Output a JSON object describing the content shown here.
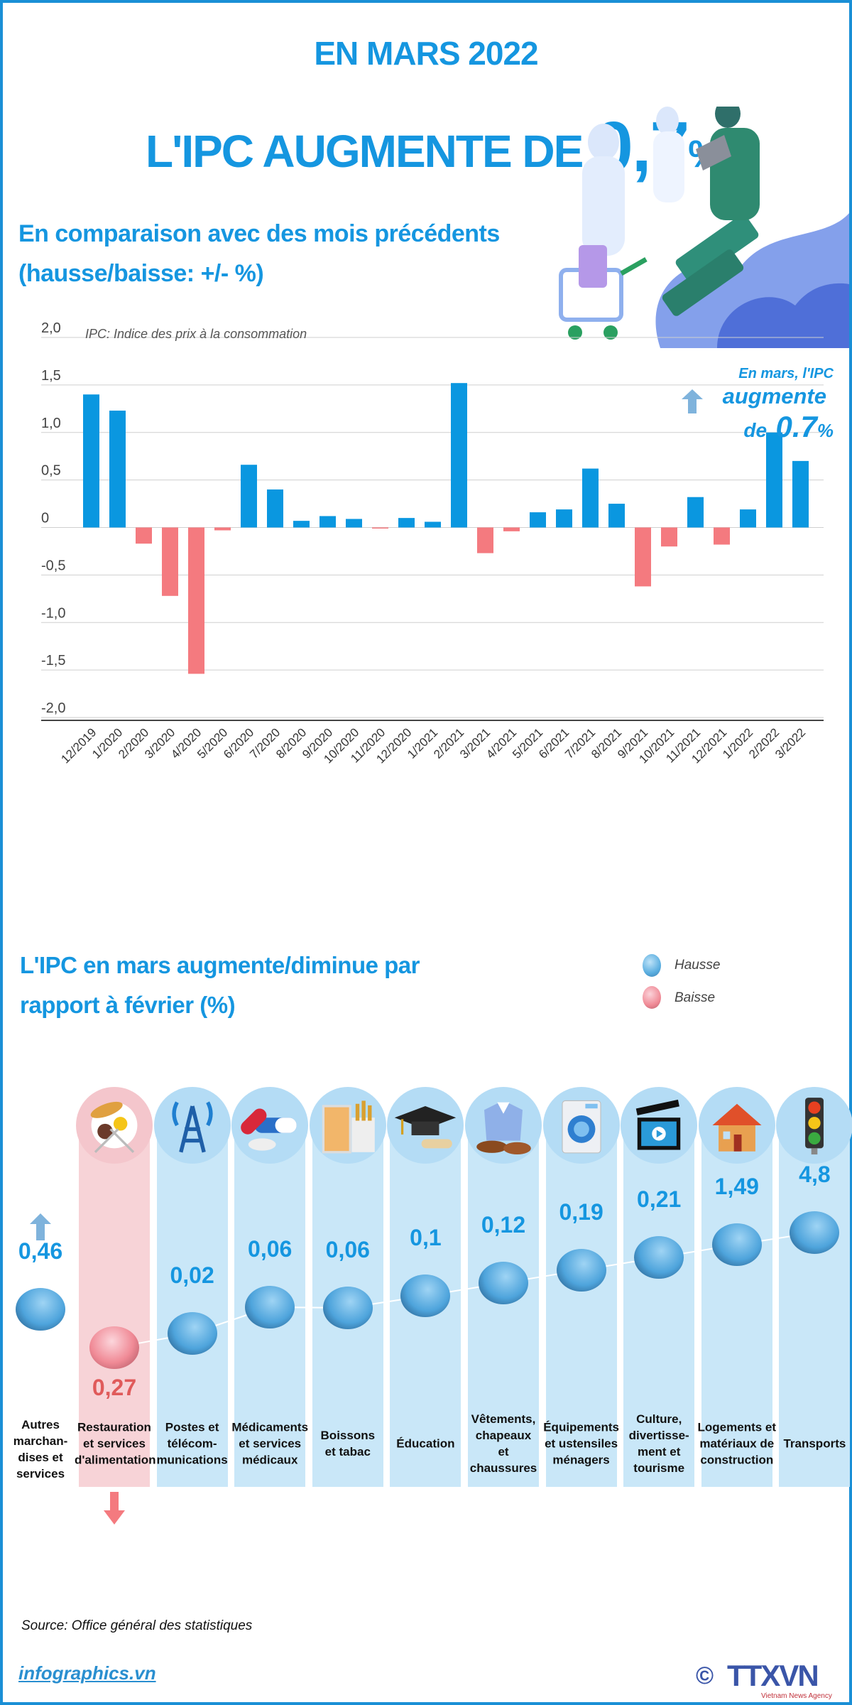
{
  "header": {
    "title_line1": "EN MARS 2022",
    "title_line2_prefix": "L'IPC AUGMENTE DE",
    "title_value": "0,7",
    "title_unit": "%"
  },
  "section1": {
    "title_line1": "En comparaison avec des mois précédents",
    "title_line2": "(hausse/baisse: +/- %)",
    "note": "IPC: Indice des prix à la consommation",
    "annotation_line1": "En mars, l'IPC",
    "annotation_line2": "augmente",
    "annotation_de": "de",
    "annotation_value": "0.7",
    "annotation_unit": "%"
  },
  "section2": {
    "title_line1": "L'IPC en mars augmente/diminue par",
    "title_line2": "rapport à février (%)",
    "legend": [
      {
        "label": "Hausse",
        "color": "#5aaee0"
      },
      {
        "label": "Baisse",
        "color": "#f08a96"
      }
    ]
  },
  "colors": {
    "accent": "#1596e0",
    "positive_bar": "#0a97e0",
    "negative_bar": "#f47a7f",
    "negative_text": "#e05a5a",
    "strip_blue": "#c9e7f8",
    "strip_pink": "#f7d3d7"
  },
  "chart_data": [
    {
      "type": "bar",
      "title": "",
      "ylim": [
        -2.0,
        2.0
      ],
      "yticks": [
        "2,0",
        "1,5",
        "1,0",
        "0,5",
        "0",
        "-0,5",
        "-1,0",
        "-1,5",
        "-2,0"
      ],
      "ytick_values": [
        2.0,
        1.5,
        1.0,
        0.5,
        0,
        -0.5,
        -1.0,
        -1.5,
        -2.0
      ],
      "grid": true,
      "categories": [
        "12/2019",
        "1/2020",
        "2/2020",
        "3/2020",
        "4/2020",
        "5/2020",
        "6/2020",
        "7/2020",
        "8/2020",
        "9/2020",
        "10/2020",
        "11/2020",
        "12/2020",
        "1/2021",
        "2/2021",
        "3/2021",
        "4/2021",
        "5/2021",
        "6/2021",
        "7/2021",
        "8/2021",
        "9/2021",
        "10/2021",
        "11/2021",
        "12/2021",
        "1/2022",
        "2/2022",
        "3/2022"
      ],
      "values": [
        1.4,
        1.23,
        -0.17,
        -0.72,
        -1.54,
        -0.03,
        0.66,
        0.4,
        0.07,
        0.12,
        0.09,
        -0.01,
        0.1,
        0.06,
        1.52,
        -0.27,
        -0.04,
        0.16,
        0.19,
        0.62,
        0.25,
        -0.62,
        -0.2,
        0.32,
        -0.18,
        0.19,
        1.0,
        0.7
      ]
    },
    {
      "type": "scatter",
      "title": "",
      "categories": [
        {
          "label": "Autres marchan- dises et services",
          "lines": [
            "Autres",
            "marchan-",
            "dises et",
            "services"
          ],
          "value": 0.46,
          "value_label": "0,46",
          "direction": "hausse",
          "icon": "none"
        },
        {
          "label": "Restauration et services d'alimentation",
          "lines": [
            "Restauration",
            "et services",
            "d'alimentation"
          ],
          "value": -0.27,
          "value_label": "0,27",
          "direction": "baisse",
          "icon": "food-plate-icon"
        },
        {
          "label": "Postes et télécom- munications",
          "lines": [
            "Postes et",
            "télécom-",
            "munications"
          ],
          "value": 0.02,
          "value_label": "0,02",
          "direction": "hausse",
          "icon": "antenna-tower-icon"
        },
        {
          "label": "Médicaments et services médicaux",
          "lines": [
            "Médicaments",
            "et services",
            "médicaux"
          ],
          "value": 0.06,
          "value_label": "0,06",
          "direction": "hausse",
          "icon": "pill-icon"
        },
        {
          "label": "Boissons et tabac",
          "lines": [
            "Boissons",
            "et tabac"
          ],
          "value": 0.06,
          "value_label": "0,06",
          "direction": "hausse",
          "icon": "drink-cigarettes-icon"
        },
        {
          "label": "Éducation",
          "lines": [
            "Éducation"
          ],
          "value": 0.1,
          "value_label": "0,1",
          "direction": "hausse",
          "icon": "graduation-cap-icon"
        },
        {
          "label": "Vêtements, chapeaux et chaussures",
          "lines": [
            "Vêtements,",
            "chapeaux",
            "et",
            "chaussures"
          ],
          "value": 0.12,
          "value_label": "0,12",
          "direction": "hausse",
          "icon": "shirt-shoes-icon"
        },
        {
          "label": "Équipements et ustensiles ménagers",
          "lines": [
            "Équipements",
            "et ustensiles",
            "ménagers"
          ],
          "value": 0.19,
          "value_label": "0,19",
          "direction": "hausse",
          "icon": "washing-machine-icon"
        },
        {
          "label": "Culture, divertisse- ment et tourisme",
          "lines": [
            "Culture,",
            "divertisse-",
            "ment et",
            "tourisme"
          ],
          "value": 0.21,
          "value_label": "0,21",
          "direction": "hausse",
          "icon": "clapperboard-icon"
        },
        {
          "label": "Logements et matériaux de construction",
          "lines": [
            "Logements et",
            "matériaux de",
            "construction"
          ],
          "value": 1.49,
          "value_label": "1,49",
          "direction": "hausse",
          "icon": "house-icon"
        },
        {
          "label": "Transports",
          "lines": [
            "Transports"
          ],
          "value": 4.8,
          "value_label": "4,8",
          "direction": "hausse",
          "icon": "traffic-light-icon"
        }
      ]
    }
  ],
  "footer": {
    "source": "Source: Office général des statistiques",
    "site": "infographics.vn",
    "logo_text": "TTXVN",
    "logo_sub": "Vietnam News Agency",
    "copyright": "©"
  }
}
